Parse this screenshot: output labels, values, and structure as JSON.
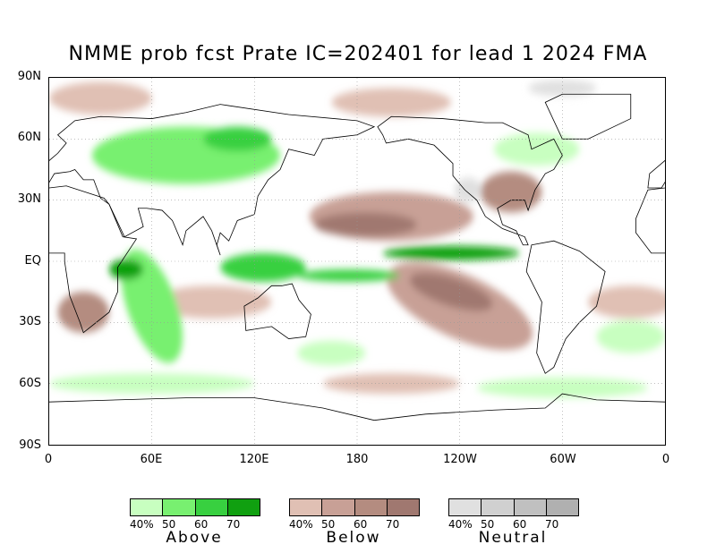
{
  "title": "NMME prob fcst Prate IC=202401 for lead 1 2024 FMA",
  "y_labels": [
    "90N",
    "60N",
    "30N",
    "EQ",
    "30S",
    "60S",
    "90S"
  ],
  "x_labels": [
    "0",
    "60E",
    "120E",
    "180",
    "120W",
    "60W",
    "0"
  ],
  "legends": [
    {
      "name": "Above",
      "ticks": [
        "40%",
        "50",
        "60",
        "70"
      ],
      "colors": [
        "#c8ffc0",
        "#78f070",
        "#38d040",
        "#10a010"
      ]
    },
    {
      "name": "Below",
      "ticks": [
        "40%",
        "50",
        "60",
        "70"
      ],
      "colors": [
        "#e0c0b4",
        "#c8a096",
        "#b48c80",
        "#a07870"
      ]
    },
    {
      "name": "Neutral",
      "ticks": [
        "40%",
        "50",
        "60",
        "70"
      ],
      "colors": [
        "#e0e0e0",
        "#d0d0d0",
        "#c0c0c0",
        "#b0b0b0"
      ]
    }
  ]
}
